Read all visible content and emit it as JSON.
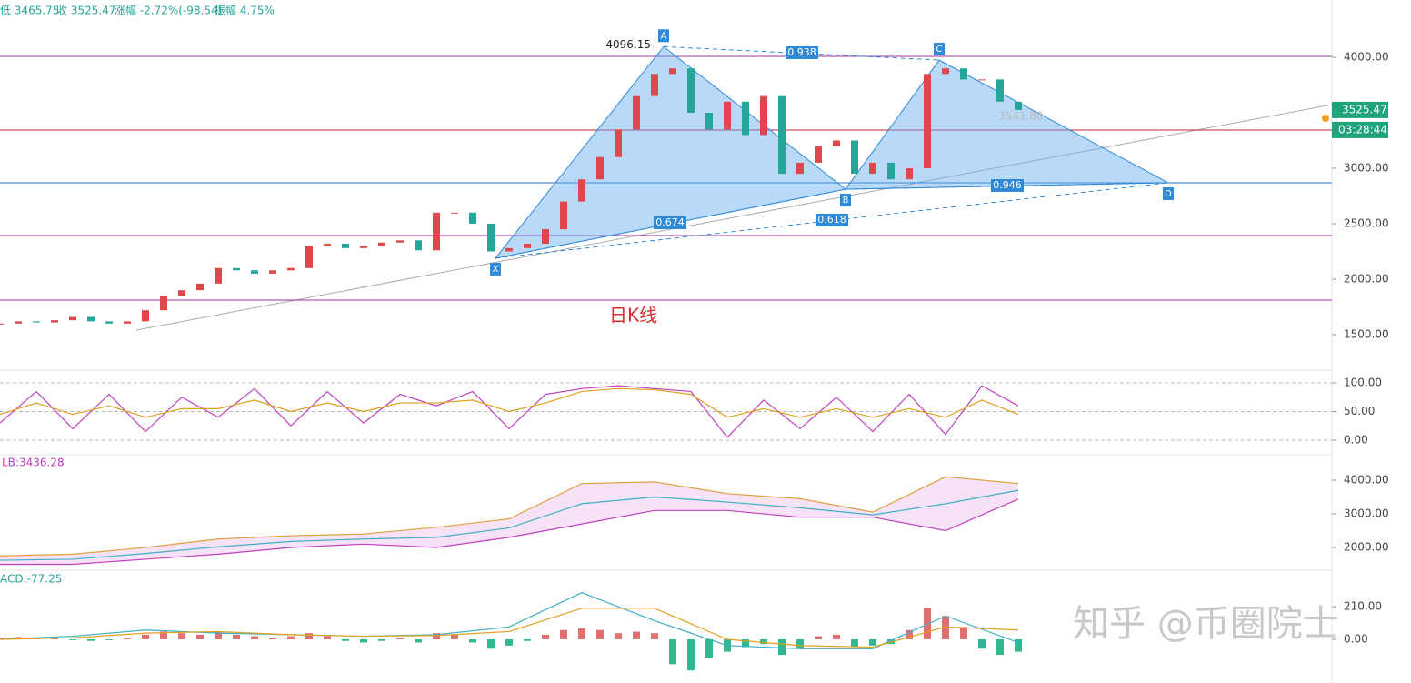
{
  "header": {
    "low": "低 3465.75",
    "close": "收 3525.47",
    "change": "涨幅 -2.72%(-98.54)",
    "amplitude": "振幅 4.75%"
  },
  "price": {
    "title": "日K线",
    "yticks": [
      {
        "value": 4000,
        "label": "4000.00"
      },
      {
        "value": 3000,
        "label": "3000.00"
      },
      {
        "value": 2500,
        "label": "2500.00"
      },
      {
        "value": 2000,
        "label": "2000.00"
      },
      {
        "value": 1500,
        "label": "1500.00"
      }
    ],
    "closes": [
      1600,
      1620,
      1610,
      1630,
      1660,
      1620,
      1600,
      1620,
      1720,
      1850,
      1900,
      1960,
      2100,
      2080,
      2050,
      2080,
      2100,
      2300,
      2320,
      2280,
      2300,
      2330,
      2350,
      2260,
      2600,
      2600,
      2500,
      2250,
      2280,
      2320,
      2450,
      2700,
      2900,
      3100,
      3350,
      3650,
      3850,
      3900,
      3500,
      3350,
      3600,
      3300,
      3650,
      2950,
      3050,
      3200,
      3250,
      2950,
      3050,
      2900,
      3000,
      3850,
      3900,
      3800,
      3800,
      3600,
      3525
    ],
    "levels": [
      4008,
      3344,
      2869,
      2393,
      1811
    ],
    "points": [
      {
        "label": "X",
        "value": 2189
      },
      {
        "label": "A",
        "value": 4096.15
      },
      {
        "label": "B",
        "value": 2811
      },
      {
        "label": "C",
        "value": 3975
      },
      {
        "label": "D",
        "value": 2869
      }
    ],
    "ratios": [
      "0.674",
      "0.938",
      "0.618",
      "0.946"
    ],
    "fib_label": "3541.80",
    "last_price": {
      "value": 3525.47,
      "label": "3525.47"
    },
    "countdown": "03:28:44"
  },
  "osc": {
    "yticks": [
      {
        "value": 100,
        "label": "100.00"
      },
      {
        "value": 50,
        "label": "50.00"
      },
      {
        "value": 0,
        "label": "0.00"
      }
    ],
    "k": [
      30,
      85,
      20,
      80,
      15,
      75,
      40,
      90,
      25,
      85,
      30,
      80,
      60,
      85,
      20,
      80,
      90,
      95,
      90,
      85,
      5,
      70,
      20,
      75,
      15,
      80,
      10,
      95,
      60
    ],
    "d": [
      45,
      65,
      45,
      60,
      40,
      55,
      55,
      70,
      50,
      65,
      50,
      65,
      65,
      70,
      50,
      65,
      85,
      90,
      88,
      80,
      40,
      55,
      40,
      55,
      40,
      55,
      40,
      70,
      45
    ]
  },
  "bb": {
    "label": "LB:3436.28",
    "yticks": [
      {
        "value": 4000,
        "label": "4000.00"
      },
      {
        "value": 3000,
        "label": "3000.00"
      },
      {
        "value": 2000,
        "label": "2000.00"
      }
    ],
    "upper": [
      1750,
      1800,
      2000,
      2250,
      2350,
      2400,
      2600,
      2850,
      3900,
      3950,
      3600,
      3450,
      3050,
      4100,
      3900
    ],
    "mid": [
      1620,
      1650,
      1820,
      2020,
      2180,
      2250,
      2300,
      2580,
      3300,
      3500,
      3350,
      3180,
      2970,
      3300,
      3700
    ],
    "lower": [
      1500,
      1500,
      1650,
      1800,
      2000,
      2100,
      2000,
      2300,
      2700,
      3100,
      3100,
      2900,
      2900,
      2500,
      3436.28
    ]
  },
  "macd": {
    "label": "ACD:-77.25",
    "yticks": [
      {
        "value": 210,
        "label": "210.00"
      },
      {
        "value": 0,
        "label": "0.00"
      }
    ],
    "hist": [
      10,
      15,
      10,
      5,
      -5,
      -10,
      -5,
      5,
      30,
      50,
      40,
      30,
      50,
      30,
      20,
      10,
      20,
      40,
      20,
      -10,
      -20,
      -10,
      10,
      -20,
      40,
      30,
      -20,
      -60,
      -40,
      -10,
      30,
      60,
      70,
      60,
      40,
      50,
      40,
      -160,
      -200,
      -120,
      -80,
      -50,
      -30,
      -100,
      -60,
      20,
      30,
      -50,
      -40,
      -30,
      60,
      200,
      150,
      80,
      -60,
      -100,
      -80
    ],
    "dif": [
      0,
      20,
      60,
      40,
      30,
      20,
      30,
      80,
      300,
      120,
      -40,
      -60,
      -60,
      150,
      -20
    ],
    "dea": [
      0,
      10,
      40,
      50,
      30,
      20,
      25,
      50,
      200,
      200,
      0,
      -40,
      -50,
      80,
      60
    ]
  },
  "watermark": "知乎 @币圈院士"
}
